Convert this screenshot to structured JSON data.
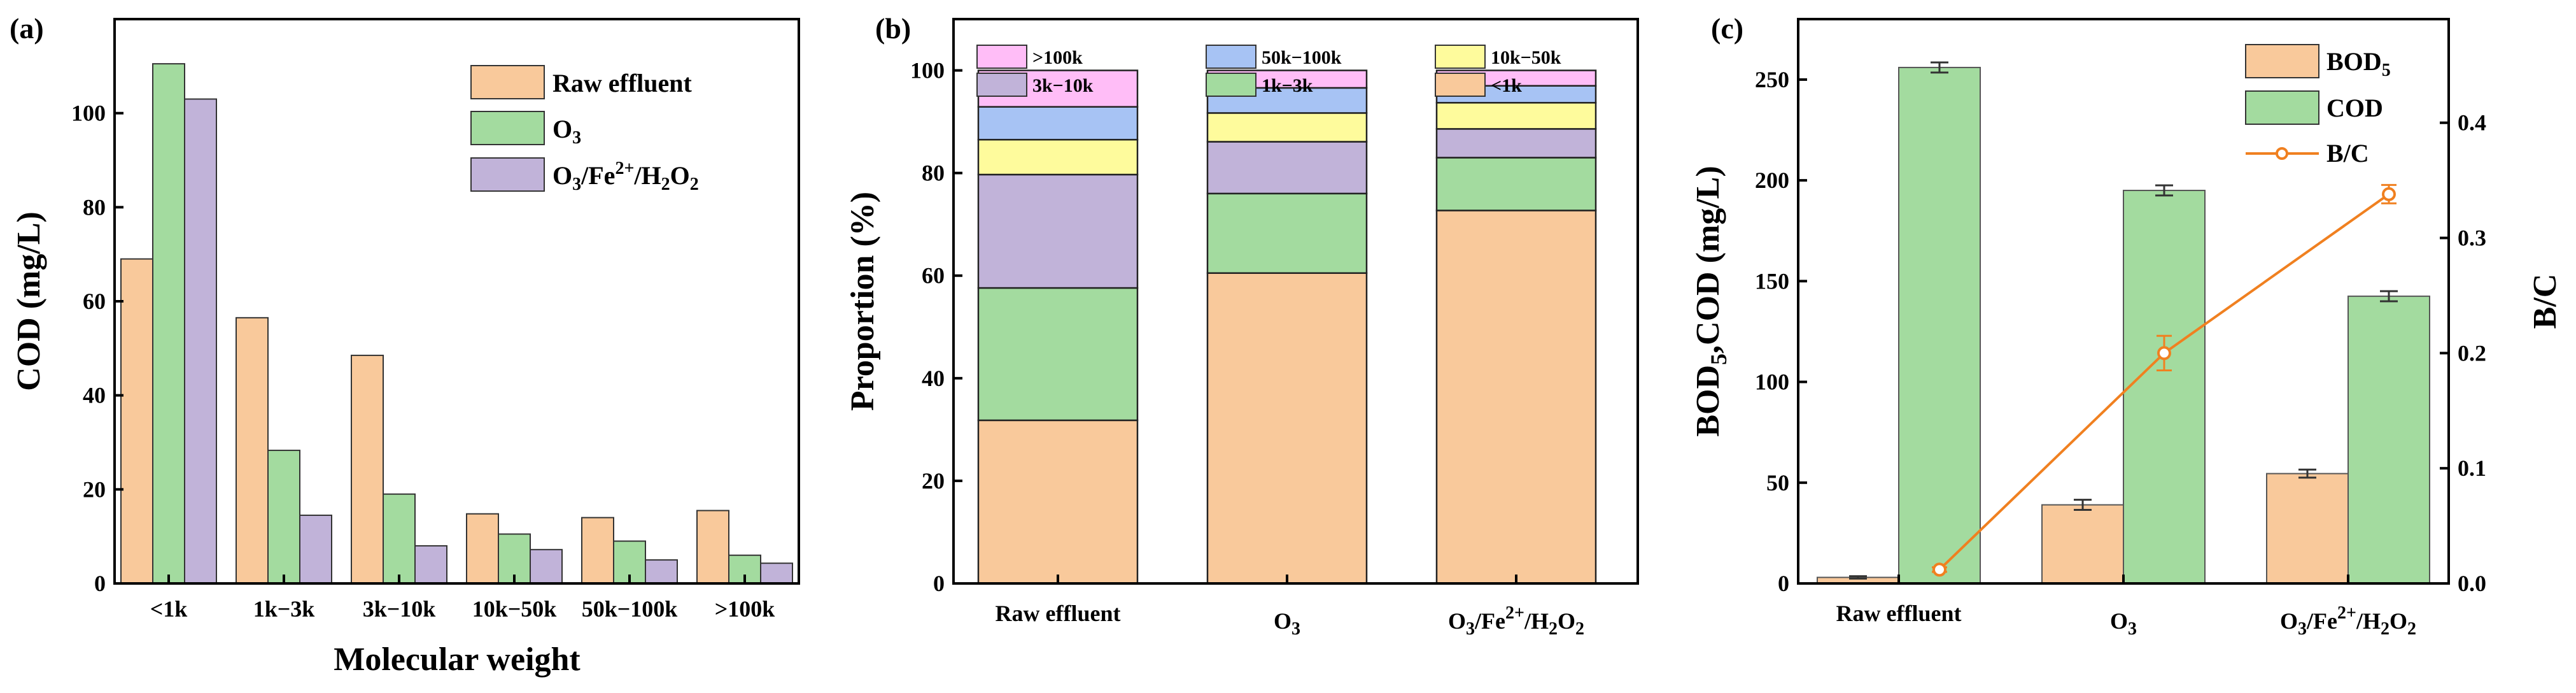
{
  "colors": {
    "raw": "#F9C99B",
    "o3": "#A3DB9F",
    "fenton": "#C1B3D9",
    "gt100k": "#FFBDF7",
    "k50_100": "#A7C3F4",
    "k10_50": "#FEFB9C",
    "k3_10": "#C1B3D9",
    "k1_3": "#A3DB9F",
    "lt1k": "#F9C99B",
    "bc_line": "#F08020"
  },
  "chart_data": [
    {
      "type": "bar",
      "panel": "(a)",
      "categories": [
        "<1k",
        "1k−3k",
        "3k−10k",
        "10k−50k",
        "50k−100k",
        ">100k"
      ],
      "series": [
        {
          "name": "Raw effluent",
          "values": [
            69,
            56.5,
            48.5,
            14.8,
            14,
            15.5
          ]
        },
        {
          "name": "O3",
          "values": [
            110.5,
            28.3,
            19,
            10.5,
            9,
            6
          ]
        },
        {
          "name": "O3/Fe2+/H2O2",
          "values": [
            103,
            14.5,
            8,
            7.2,
            5,
            4.3
          ]
        }
      ],
      "legend": {
        "raw": "Raw effluent",
        "o3_main": "O",
        "o3_sub": "3",
        "f_o": "O",
        "f_3": "3",
        "f_fe": "/Fe",
        "f_2p": "2+",
        "f_h": "/H",
        "f_2a": "2",
        "f_o2": "O",
        "f_2b": "2"
      },
      "xlabel": "Molecular weight",
      "ylabel": "COD (mg/L)",
      "ylim": [
        0,
        120
      ],
      "yticks": [
        "0",
        "20",
        "40",
        "60",
        "80",
        "100"
      ]
    },
    {
      "type": "bar",
      "stacked": true,
      "panel": "(b)",
      "categories": [
        "Raw effluent",
        "O3",
        "O3/Fe2+/H2O2"
      ],
      "cat_labels": {
        "raw": "Raw effluent",
        "o3_main": "O",
        "o3_sub": "3",
        "f_o": "O",
        "f_3": "3",
        "f_fe": "/Fe",
        "f_2p": "2+",
        "f_h": "/H",
        "f_2a": "2",
        "f_o2": "O",
        "f_2b": "2"
      },
      "series": [
        {
          "name": "<1k",
          "values": [
            31.8,
            60.5,
            72.7
          ]
        },
        {
          "name": "1k−3k",
          "values": [
            25.8,
            15.5,
            10.3
          ]
        },
        {
          "name": "3k−10k",
          "values": [
            22.1,
            10.1,
            5.6
          ]
        },
        {
          "name": "10k−50k",
          "values": [
            6.8,
            5.6,
            5.1
          ]
        },
        {
          "name": "50k−100k",
          "values": [
            6.4,
            4.9,
            3.3
          ]
        },
        {
          "name": ">100k",
          "values": [
            7.1,
            3.4,
            3.0
          ]
        }
      ],
      "ylabel": "Proportion (%)",
      "ylim": [
        0,
        110
      ],
      "yticks": [
        "0",
        "20",
        "40",
        "60",
        "80",
        "100"
      ]
    },
    {
      "type": "bar",
      "panel": "(c)",
      "categories": [
        "Raw effluent",
        "O3",
        "O3/Fe2+/H2O2"
      ],
      "cat_labels": {
        "raw": "Raw effluent",
        "o3_main": "O",
        "o3_sub": "3",
        "f_o": "O",
        "f_3": "3",
        "f_fe": "/Fe",
        "f_2p": "2+",
        "f_h": "/H",
        "f_2a": "2",
        "f_o2": "O",
        "f_2b": "2"
      },
      "series": [
        {
          "name": "BOD5",
          "values": [
            3,
            39,
            54.5
          ],
          "errors": [
            0.6,
            2.5,
            2
          ]
        },
        {
          "name": "COD",
          "values": [
            256,
            195,
            142.5
          ],
          "errors": [
            2.5,
            2.5,
            2.5
          ]
        }
      ],
      "line_series": {
        "name": "B/C",
        "axis": "right",
        "values": [
          0.012,
          0.2,
          0.338
        ],
        "errors": [
          0.002,
          0.015,
          0.008
        ]
      },
      "legend": {
        "bod_main": "BOD",
        "bod_sub": "5",
        "cod": "COD",
        "bc": "B/C"
      },
      "ylabel_left": {
        "main": "BOD",
        "sub": "5",
        "rest": ",COD (mg/L)"
      },
      "ylabel_right": "B/C",
      "ylim_left": [
        0,
        280
      ],
      "ylim_right": [
        0,
        0.49
      ],
      "yticks_left": [
        "0",
        "50",
        "100",
        "150",
        "200",
        "250"
      ],
      "yticks_right": [
        "0.0",
        "0.1",
        "0.2",
        "0.3",
        "0.4"
      ]
    }
  ]
}
